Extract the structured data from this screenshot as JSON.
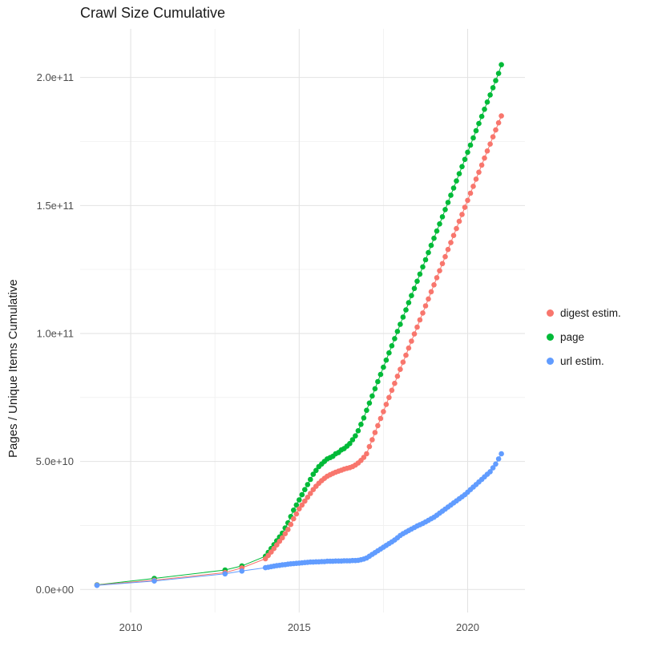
{
  "title": "Crawl Size Cumulative",
  "y_axis_title": "Pages / Unique Items Cumulative",
  "legend": {
    "items": [
      {
        "label": "digest estim.",
        "color": "#F8766D"
      },
      {
        "label": "page",
        "color": "#00BA38"
      },
      {
        "label": "url estim.",
        "color": "#619CFF"
      }
    ]
  },
  "colors": {
    "digest": "#F8766D",
    "page": "#00BA38",
    "url": "#619CFF",
    "grid_major": "#e2e2e2",
    "grid_minor": "#f0f0f0",
    "tick_text": "#4d4d4d",
    "background": "#ffffff"
  },
  "chart_data": {
    "type": "line",
    "marker": "circle",
    "title": "Crawl Size Cumulative",
    "xlabel": "",
    "ylabel": "Pages / Unique Items Cumulative",
    "grid": true,
    "legend_position": "right",
    "xlim": [
      2008.5,
      2021.7
    ],
    "ylim_e9": [
      -9,
      219
    ],
    "x_major_ticks": [
      2010,
      2015,
      2020
    ],
    "x_tick_labels": [
      "2010",
      "2015",
      "2020"
    ],
    "x_minor_ticks": [
      2012.5,
      2017.5
    ],
    "y_major_ticks_e9": [
      0,
      50,
      100,
      150,
      200
    ],
    "y_tick_labels": [
      "0.0e+00",
      "5.0e+10",
      "1.0e+11",
      "1.5e+11",
      "2.0e+11"
    ],
    "y_minor_ticks_e9": [
      25,
      75,
      125,
      175
    ],
    "y_values_unit": "1e9",
    "draw_order": [
      "page",
      "digest estim.",
      "url estim."
    ],
    "x_common": [
      2009,
      2010.7,
      2012.8,
      2013.3,
      2014,
      2014.083,
      2014.167,
      2014.25,
      2014.333,
      2014.417,
      2014.5,
      2014.583,
      2014.667,
      2014.75,
      2014.833,
      2014.917,
      2015,
      2015.083,
      2015.167,
      2015.25,
      2015.333,
      2015.417,
      2015.5,
      2015.583,
      2015.667,
      2015.75,
      2015.833,
      2015.917,
      2016,
      2016.083,
      2016.167,
      2016.25,
      2016.333,
      2016.417,
      2016.5,
      2016.583,
      2016.667,
      2016.75,
      2016.833,
      2016.917,
      2017,
      2017.083,
      2017.167,
      2017.25,
      2017.333,
      2017.417,
      2017.5,
      2017.583,
      2017.667,
      2017.75,
      2017.833,
      2017.917,
      2018,
      2018.083,
      2018.167,
      2018.25,
      2018.333,
      2018.417,
      2018.5,
      2018.583,
      2018.667,
      2018.75,
      2018.833,
      2018.917,
      2019,
      2019.083,
      2019.167,
      2019.25,
      2019.333,
      2019.417,
      2019.5,
      2019.583,
      2019.667,
      2019.75,
      2019.833,
      2019.917,
      2020,
      2020.083,
      2020.167,
      2020.25,
      2020.333,
      2020.417,
      2020.5,
      2020.583,
      2020.667,
      2020.75,
      2020.833,
      2020.917,
      2021
    ],
    "series": [
      {
        "name": "digest estim.",
        "color": "#F8766D",
        "y_e9": [
          1.7,
          3.6,
          6.6,
          8.4,
          12,
          13.3,
          14.6,
          16,
          17.4,
          18.8,
          20.2,
          21.8,
          23.4,
          25.4,
          27.6,
          29.5,
          31.5,
          33,
          34.5,
          36,
          37.5,
          39,
          40.3,
          41.5,
          42.5,
          43.4,
          44.2,
          44.8,
          45.3,
          45.8,
          46.2,
          46.6,
          47,
          47.3,
          47.6,
          48,
          48.6,
          49.4,
          50.4,
          51.6,
          53,
          55.8,
          58.5,
          61.3,
          64,
          66.8,
          69.5,
          72.3,
          75,
          77.8,
          80.5,
          83.3,
          86,
          88.8,
          91.5,
          94.3,
          97,
          99.8,
          102.5,
          105.3,
          108,
          110.8,
          113.5,
          116.3,
          119,
          121.8,
          124.5,
          127.3,
          130,
          132.8,
          135.5,
          138.3,
          141,
          143.8,
          146.5,
          149.3,
          152,
          154.8,
          157.5,
          160.3,
          163,
          165.8,
          168.5,
          171.3,
          174,
          176.8,
          179.5,
          182.3,
          185
        ]
      },
      {
        "name": "page",
        "color": "#00BA38",
        "y_e9": [
          1.8,
          4.3,
          7.6,
          9.2,
          13,
          14.5,
          16,
          17.5,
          19,
          20.5,
          22,
          24,
          26,
          28.5,
          31,
          33,
          35,
          37,
          39,
          41,
          43,
          45,
          46.5,
          48,
          49,
          50,
          51,
          51.5,
          52,
          53,
          53.5,
          54.5,
          55,
          56,
          57,
          58.5,
          60,
          62,
          64.5,
          67,
          70,
          72.8,
          75.6,
          78.4,
          81.2,
          84,
          86.8,
          89.6,
          92.4,
          95.2,
          98,
          100.8,
          103.6,
          106.4,
          109.2,
          112,
          114.8,
          117.6,
          120.4,
          123.2,
          126,
          128.8,
          131.6,
          134.4,
          137.2,
          140,
          142.8,
          145.6,
          148.4,
          151.2,
          154,
          156.8,
          159.6,
          162.4,
          165.2,
          168,
          170.8,
          173.6,
          176.4,
          179.2,
          182,
          184.8,
          187.6,
          190.4,
          193.2,
          196,
          198.8,
          201.6,
          205
        ]
      },
      {
        "name": "url estim.",
        "color": "#619CFF",
        "y_e9": [
          1.6,
          3.3,
          6.1,
          7.2,
          8.5,
          8.7,
          8.9,
          9.1,
          9.3,
          9.4,
          9.6,
          9.7,
          9.9,
          10,
          10.1,
          10.2,
          10.3,
          10.4,
          10.5,
          10.6,
          10.7,
          10.7,
          10.8,
          10.8,
          10.9,
          10.9,
          11,
          11,
          11,
          11.1,
          11.1,
          11.1,
          11.2,
          11.2,
          11.2,
          11.3,
          11.3,
          11.4,
          11.6,
          11.9,
          12.3,
          13,
          13.7,
          14.4,
          15.1,
          15.8,
          16.5,
          17.2,
          17.9,
          18.6,
          19.3,
          20.2,
          21.1,
          21.8,
          22.4,
          23,
          23.6,
          24.2,
          24.8,
          25.3,
          25.8,
          26.4,
          27,
          27.6,
          28.2,
          29,
          29.8,
          30.6,
          31.4,
          32.2,
          33,
          33.8,
          34.6,
          35.4,
          36.2,
          37,
          38,
          39,
          40,
          41,
          42,
          43,
          44,
          45,
          46,
          47.5,
          49,
          51,
          53
        ]
      }
    ]
  }
}
